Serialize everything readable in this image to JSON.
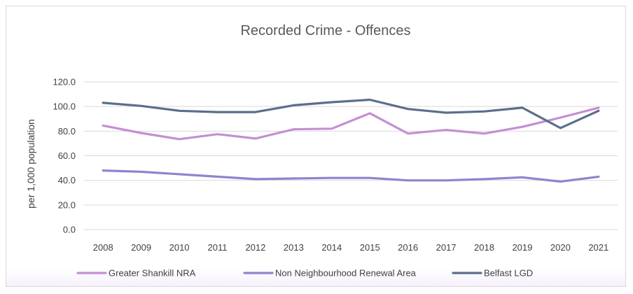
{
  "chart_data": {
    "type": "line",
    "title": "Recorded Crime - Offences",
    "xlabel": "",
    "ylabel": "per 1,000 population",
    "ylim": [
      0,
      120
    ],
    "yticks": [
      "0.0",
      "20.0",
      "40.0",
      "60.0",
      "80.0",
      "100.0",
      "120.0"
    ],
    "categories": [
      "2008",
      "2009",
      "2010",
      "2011",
      "2012",
      "2013",
      "2014",
      "2015",
      "2016",
      "2017",
      "2018",
      "2019",
      "2020",
      "2021"
    ],
    "grid": true,
    "legend_position": "bottom",
    "series": [
      {
        "name": "Greater Shankill NRA",
        "color": "#c48fd3",
        "values": [
          84.5,
          78.5,
          73.5,
          77.5,
          74.0,
          81.5,
          82.0,
          94.5,
          78.0,
          81.0,
          78.0,
          83.5,
          91.0,
          99.0
        ]
      },
      {
        "name": "Non Neighbourhood Renewal Area",
        "color": "#8f84cf",
        "values": [
          48.0,
          47.0,
          45.0,
          43.0,
          41.0,
          41.5,
          42.0,
          42.0,
          40.0,
          40.0,
          41.0,
          42.5,
          39.0,
          43.0
        ]
      },
      {
        "name": "Belfast LGD",
        "color": "#5a6f8c",
        "values": [
          103.0,
          100.5,
          96.5,
          95.5,
          95.5,
          101.0,
          103.5,
          105.5,
          98.0,
          95.0,
          96.0,
          99.0,
          82.5,
          96.5
        ]
      }
    ]
  }
}
